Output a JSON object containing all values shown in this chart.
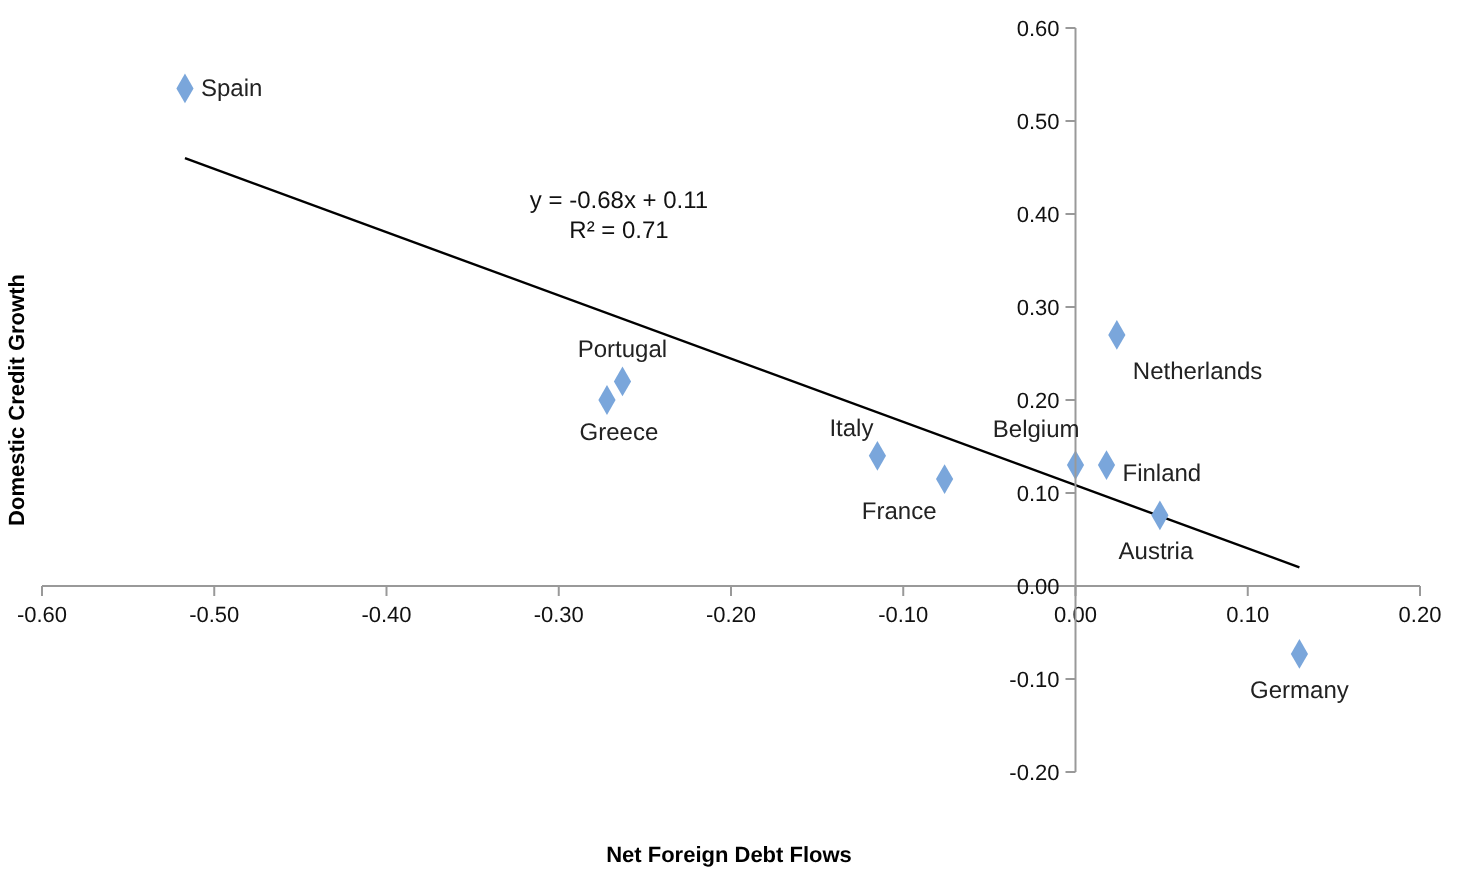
{
  "chart_data": {
    "type": "scatter",
    "xlabel": "Net Foreign Debt Flows",
    "ylabel": "Domestic Credit Growth",
    "annotations": [
      "y = -0.68x + 0.11",
      "R² = 0.71"
    ],
    "xlim": [
      -0.6,
      0.2
    ],
    "ylim": [
      -0.2,
      0.6
    ],
    "xticks": [
      {
        "value": -0.6,
        "label": "-0.60"
      },
      {
        "value": -0.5,
        "label": "-0.50"
      },
      {
        "value": -0.4,
        "label": "-0.40"
      },
      {
        "value": -0.3,
        "label": "-0.30"
      },
      {
        "value": -0.2,
        "label": "-0.20"
      },
      {
        "value": -0.1,
        "label": "-0.10"
      },
      {
        "value": 0,
        "label": "0.00"
      },
      {
        "value": 0.1,
        "label": "0.10"
      },
      {
        "value": 0.2,
        "label": "0.20"
      }
    ],
    "yticks": [
      {
        "value": -0.2,
        "label": "-0.20"
      },
      {
        "value": -0.1,
        "label": "-0.10"
      },
      {
        "value": 0,
        "label": "0.00"
      },
      {
        "value": 0.1,
        "label": "0.10"
      },
      {
        "value": 0.2,
        "label": "0.20"
      },
      {
        "value": 0.3,
        "label": "0.30"
      },
      {
        "value": 0.4,
        "label": "0.40"
      },
      {
        "value": 0.5,
        "label": "0.50"
      },
      {
        "value": 0.6,
        "label": "0.60"
      }
    ],
    "marker": "diamond",
    "series": [
      {
        "color": "#7aa6db",
        "x": [
          -0.517,
          -0.263,
          -0.272,
          -0.115,
          -0.076,
          0.0,
          0.018,
          0.024,
          0.049,
          0.13
        ],
        "values": [
          0.535,
          0.22,
          0.2,
          0.14,
          0.115,
          0.13,
          0.13,
          0.27,
          0.076,
          -0.073
        ],
        "value_labels": [
          "Spain",
          "Portugal",
          "Greece",
          "Italy",
          "France",
          "Belgium",
          "Finland",
          "Netherlands",
          "Austria",
          "Germany"
        ]
      },
      {
        "type": "line",
        "color": "#000000",
        "marker": "none",
        "line_style": "solid",
        "x": [
          -0.517,
          0.13
        ],
        "values": [
          0.46,
          0.02
        ]
      }
    ]
  }
}
